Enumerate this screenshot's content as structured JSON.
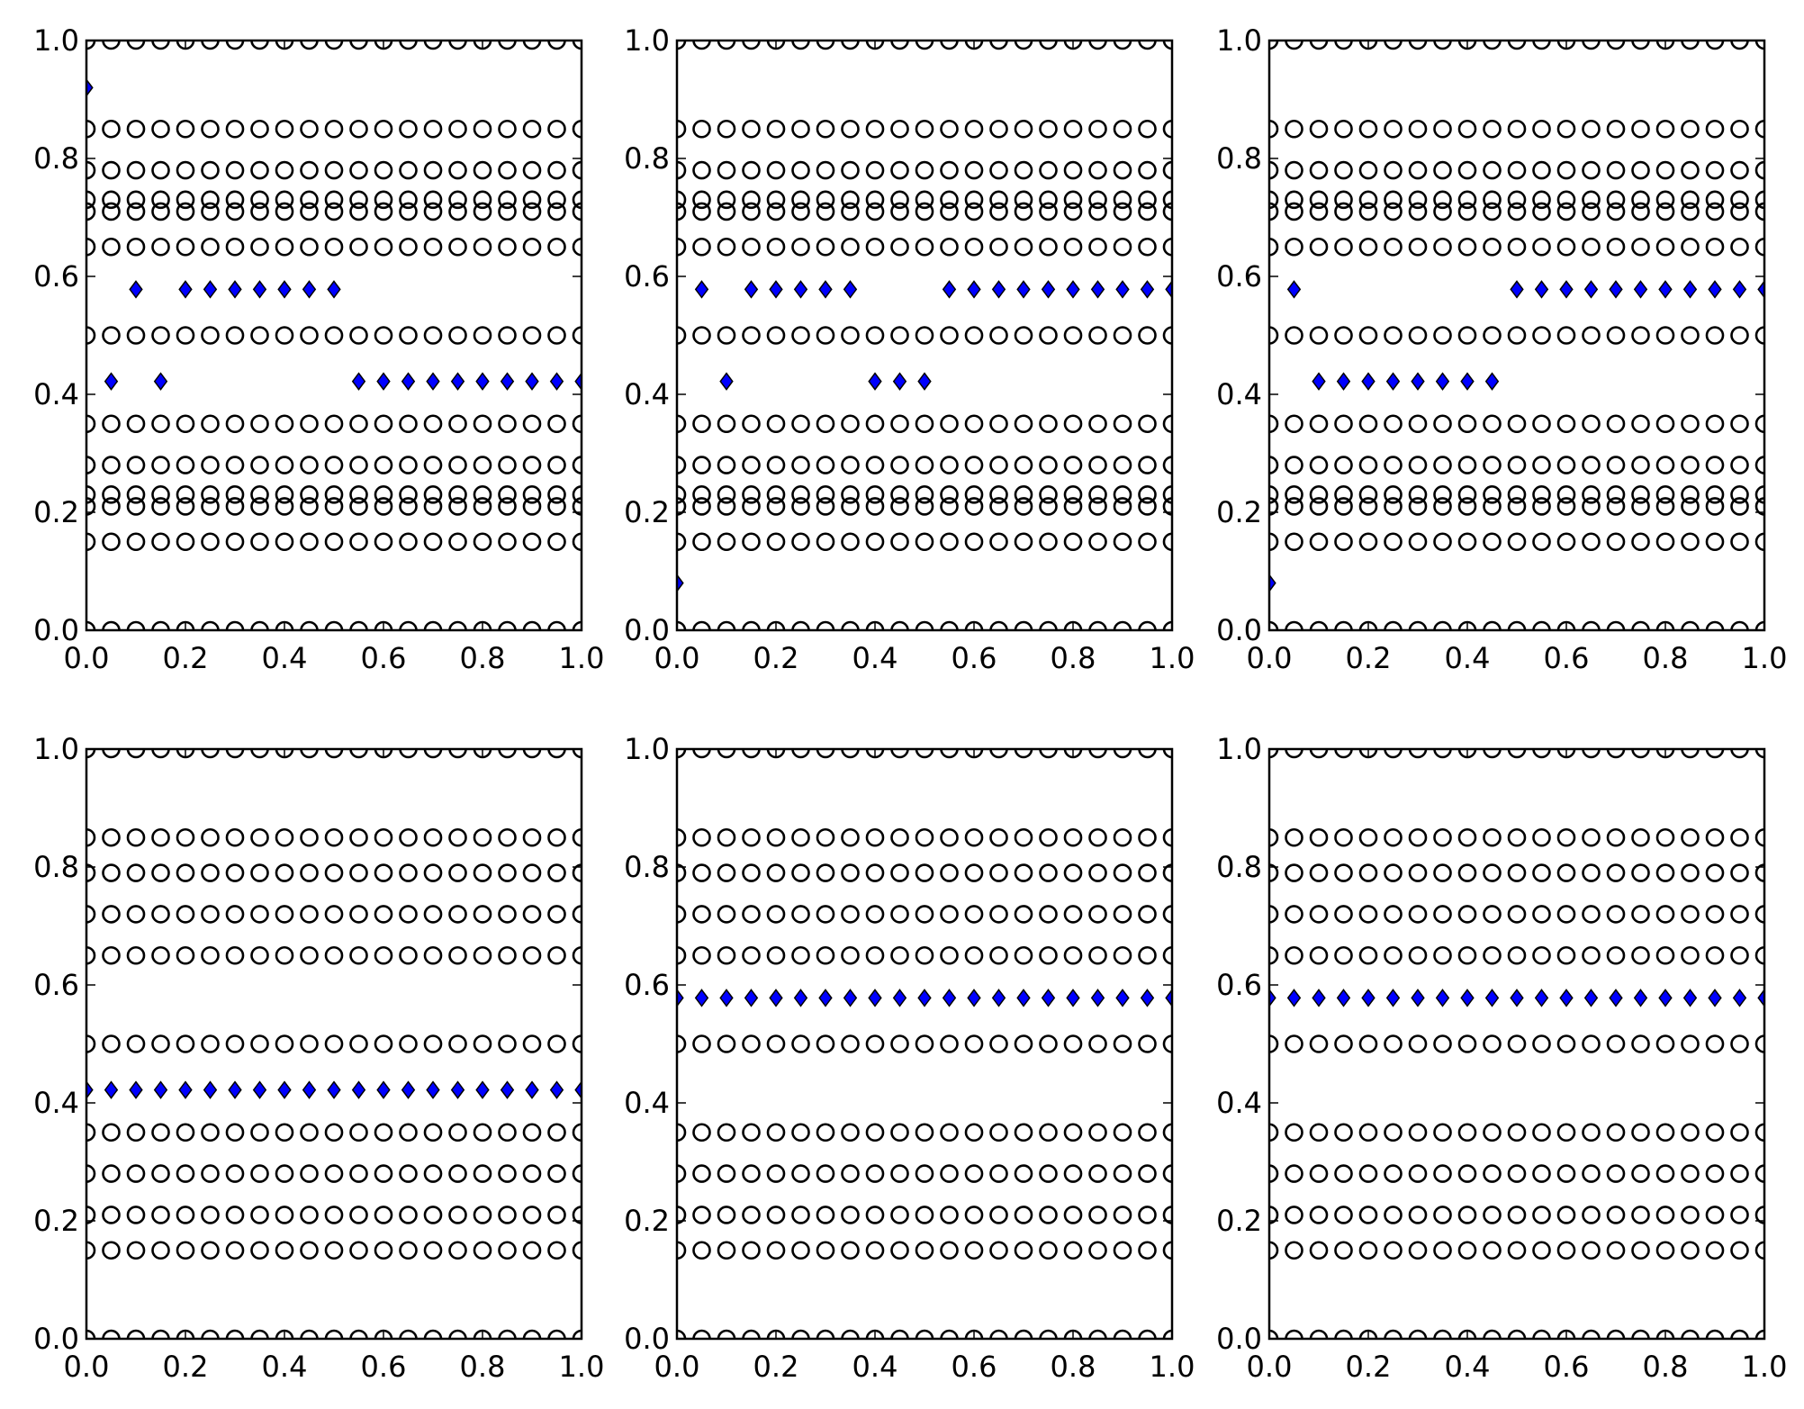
{
  "colors": {
    "marker_face": "#0000ff",
    "marker_edge": "#000000",
    "axes": "#000000",
    "background": "#ffffff"
  },
  "chart_data": [
    {
      "type": "scatter",
      "panel": "top-left",
      "xlim": [
        0,
        1
      ],
      "ylim": [
        0,
        1
      ],
      "x_ticks": [
        "0.0",
        "0.2",
        "0.4",
        "0.6",
        "0.8",
        "1.0"
      ],
      "y_ticks": [
        "0.0",
        "0.2",
        "0.4",
        "0.6",
        "0.8",
        "1.0"
      ],
      "grid": false,
      "circle_rows_y": [
        0.0,
        0.15,
        0.21,
        0.23,
        0.28,
        0.35,
        0.5,
        0.65,
        0.71,
        0.73,
        0.78,
        0.85,
        1.0
      ],
      "circle_x": [
        0.0,
        0.05,
        0.1,
        0.15,
        0.2,
        0.25,
        0.3,
        0.35,
        0.4,
        0.45,
        0.5,
        0.55,
        0.6,
        0.65,
        0.7,
        0.75,
        0.8,
        0.85,
        0.9,
        0.95,
        1.0
      ],
      "series": [
        {
          "marker": "diamond",
          "points": [
            [
              0.0,
              0.92
            ],
            [
              0.1,
              0.578
            ],
            [
              0.2,
              0.578
            ],
            [
              0.25,
              0.578
            ],
            [
              0.3,
              0.578
            ],
            [
              0.35,
              0.578
            ],
            [
              0.4,
              0.578
            ],
            [
              0.45,
              0.578
            ],
            [
              0.5,
              0.578
            ],
            [
              0.05,
              0.422
            ],
            [
              0.15,
              0.422
            ],
            [
              0.55,
              0.422
            ],
            [
              0.6,
              0.422
            ],
            [
              0.65,
              0.422
            ],
            [
              0.7,
              0.422
            ],
            [
              0.75,
              0.422
            ],
            [
              0.8,
              0.422
            ],
            [
              0.85,
              0.422
            ],
            [
              0.9,
              0.422
            ],
            [
              0.95,
              0.422
            ],
            [
              1.0,
              0.422
            ]
          ]
        }
      ]
    },
    {
      "type": "scatter",
      "panel": "top-middle",
      "xlim": [
        0,
        1
      ],
      "ylim": [
        0,
        1
      ],
      "x_ticks": [
        "0.0",
        "0.2",
        "0.4",
        "0.6",
        "0.8",
        "1.0"
      ],
      "y_ticks": [
        "0.0",
        "0.2",
        "0.4",
        "0.6",
        "0.8",
        "1.0"
      ],
      "grid": false,
      "circle_rows_y": [
        0.0,
        0.15,
        0.21,
        0.23,
        0.28,
        0.35,
        0.5,
        0.65,
        0.71,
        0.73,
        0.78,
        0.85,
        1.0
      ],
      "circle_x": [
        0.0,
        0.05,
        0.1,
        0.15,
        0.2,
        0.25,
        0.3,
        0.35,
        0.4,
        0.45,
        0.5,
        0.55,
        0.6,
        0.65,
        0.7,
        0.75,
        0.8,
        0.85,
        0.9,
        0.95,
        1.0
      ],
      "series": [
        {
          "marker": "diamond",
          "points": [
            [
              0.05,
              0.578
            ],
            [
              0.15,
              0.578
            ],
            [
              0.2,
              0.578
            ],
            [
              0.25,
              0.578
            ],
            [
              0.3,
              0.578
            ],
            [
              0.35,
              0.578
            ],
            [
              0.55,
              0.578
            ],
            [
              0.6,
              0.578
            ],
            [
              0.65,
              0.578
            ],
            [
              0.7,
              0.578
            ],
            [
              0.75,
              0.578
            ],
            [
              0.8,
              0.578
            ],
            [
              0.85,
              0.578
            ],
            [
              0.9,
              0.578
            ],
            [
              0.95,
              0.578
            ],
            [
              1.0,
              0.578
            ],
            [
              0.1,
              0.422
            ],
            [
              0.4,
              0.422
            ],
            [
              0.45,
              0.422
            ],
            [
              0.5,
              0.422
            ],
            [
              0.0,
              0.08
            ]
          ]
        }
      ]
    },
    {
      "type": "scatter",
      "panel": "top-right",
      "xlim": [
        0,
        1
      ],
      "ylim": [
        0,
        1
      ],
      "x_ticks": [
        "0.0",
        "0.2",
        "0.4",
        "0.6",
        "0.8",
        "1.0"
      ],
      "y_ticks": [
        "0.0",
        "0.2",
        "0.4",
        "0.6",
        "0.8",
        "1.0"
      ],
      "grid": false,
      "circle_rows_y": [
        0.0,
        0.15,
        0.21,
        0.23,
        0.28,
        0.35,
        0.5,
        0.65,
        0.71,
        0.73,
        0.78,
        0.85,
        1.0
      ],
      "circle_x": [
        0.0,
        0.05,
        0.1,
        0.15,
        0.2,
        0.25,
        0.3,
        0.35,
        0.4,
        0.45,
        0.5,
        0.55,
        0.6,
        0.65,
        0.7,
        0.75,
        0.8,
        0.85,
        0.9,
        0.95,
        1.0
      ],
      "series": [
        {
          "marker": "diamond",
          "points": [
            [
              0.05,
              0.578
            ],
            [
              0.5,
              0.578
            ],
            [
              0.55,
              0.578
            ],
            [
              0.6,
              0.578
            ],
            [
              0.65,
              0.578
            ],
            [
              0.7,
              0.578
            ],
            [
              0.75,
              0.578
            ],
            [
              0.8,
              0.578
            ],
            [
              0.85,
              0.578
            ],
            [
              0.9,
              0.578
            ],
            [
              0.95,
              0.578
            ],
            [
              1.0,
              0.578
            ],
            [
              0.1,
              0.422
            ],
            [
              0.15,
              0.422
            ],
            [
              0.2,
              0.422
            ],
            [
              0.25,
              0.422
            ],
            [
              0.3,
              0.422
            ],
            [
              0.35,
              0.422
            ],
            [
              0.4,
              0.422
            ],
            [
              0.45,
              0.422
            ],
            [
              0.0,
              0.08
            ]
          ]
        }
      ]
    },
    {
      "type": "scatter",
      "panel": "bottom-left",
      "xlim": [
        0,
        1
      ],
      "ylim": [
        0,
        1
      ],
      "x_ticks": [
        "0.0",
        "0.2",
        "0.4",
        "0.6",
        "0.8",
        "1.0"
      ],
      "y_ticks": [
        "0.0",
        "0.2",
        "0.4",
        "0.6",
        "0.8",
        "1.0"
      ],
      "grid": false,
      "circle_rows_y": [
        0.0,
        0.15,
        0.21,
        0.28,
        0.35,
        0.5,
        0.65,
        0.72,
        0.79,
        0.85,
        1.0
      ],
      "circle_x": [
        0.0,
        0.05,
        0.1,
        0.15,
        0.2,
        0.25,
        0.3,
        0.35,
        0.4,
        0.45,
        0.5,
        0.55,
        0.6,
        0.65,
        0.7,
        0.75,
        0.8,
        0.85,
        0.9,
        0.95,
        1.0
      ],
      "series": [
        {
          "marker": "diamond",
          "points": [
            [
              0.0,
              0.422
            ],
            [
              0.05,
              0.422
            ],
            [
              0.1,
              0.422
            ],
            [
              0.15,
              0.422
            ],
            [
              0.2,
              0.422
            ],
            [
              0.25,
              0.422
            ],
            [
              0.3,
              0.422
            ],
            [
              0.35,
              0.422
            ],
            [
              0.4,
              0.422
            ],
            [
              0.45,
              0.422
            ],
            [
              0.5,
              0.422
            ],
            [
              0.55,
              0.422
            ],
            [
              0.6,
              0.422
            ],
            [
              0.65,
              0.422
            ],
            [
              0.7,
              0.422
            ],
            [
              0.75,
              0.422
            ],
            [
              0.8,
              0.422
            ],
            [
              0.85,
              0.422
            ],
            [
              0.9,
              0.422
            ],
            [
              0.95,
              0.422
            ],
            [
              1.0,
              0.422
            ]
          ]
        }
      ]
    },
    {
      "type": "scatter",
      "panel": "bottom-middle",
      "xlim": [
        0,
        1
      ],
      "ylim": [
        0,
        1
      ],
      "x_ticks": [
        "0.0",
        "0.2",
        "0.4",
        "0.6",
        "0.8",
        "1.0"
      ],
      "y_ticks": [
        "0.0",
        "0.2",
        "0.4",
        "0.6",
        "0.8",
        "1.0"
      ],
      "grid": false,
      "circle_rows_y": [
        0.0,
        0.15,
        0.21,
        0.28,
        0.35,
        0.5,
        0.65,
        0.72,
        0.79,
        0.85,
        1.0
      ],
      "circle_x": [
        0.0,
        0.05,
        0.1,
        0.15,
        0.2,
        0.25,
        0.3,
        0.35,
        0.4,
        0.45,
        0.5,
        0.55,
        0.6,
        0.65,
        0.7,
        0.75,
        0.8,
        0.85,
        0.9,
        0.95,
        1.0
      ],
      "series": [
        {
          "marker": "diamond",
          "points": [
            [
              0.0,
              0.578
            ],
            [
              0.05,
              0.578
            ],
            [
              0.1,
              0.578
            ],
            [
              0.15,
              0.578
            ],
            [
              0.2,
              0.578
            ],
            [
              0.25,
              0.578
            ],
            [
              0.3,
              0.578
            ],
            [
              0.35,
              0.578
            ],
            [
              0.4,
              0.578
            ],
            [
              0.45,
              0.578
            ],
            [
              0.5,
              0.578
            ],
            [
              0.55,
              0.578
            ],
            [
              0.6,
              0.578
            ],
            [
              0.65,
              0.578
            ],
            [
              0.7,
              0.578
            ],
            [
              0.75,
              0.578
            ],
            [
              0.8,
              0.578
            ],
            [
              0.85,
              0.578
            ],
            [
              0.9,
              0.578
            ],
            [
              0.95,
              0.578
            ],
            [
              1.0,
              0.578
            ]
          ]
        }
      ]
    },
    {
      "type": "scatter",
      "panel": "bottom-right",
      "xlim": [
        0,
        1
      ],
      "ylim": [
        0,
        1
      ],
      "x_ticks": [
        "0.0",
        "0.2",
        "0.4",
        "0.6",
        "0.8",
        "1.0"
      ],
      "y_ticks": [
        "0.0",
        "0.2",
        "0.4",
        "0.6",
        "0.8",
        "1.0"
      ],
      "grid": false,
      "circle_rows_y": [
        0.0,
        0.15,
        0.21,
        0.28,
        0.35,
        0.5,
        0.65,
        0.72,
        0.79,
        0.85,
        1.0
      ],
      "circle_x": [
        0.0,
        0.05,
        0.1,
        0.15,
        0.2,
        0.25,
        0.3,
        0.35,
        0.4,
        0.45,
        0.5,
        0.55,
        0.6,
        0.65,
        0.7,
        0.75,
        0.8,
        0.85,
        0.9,
        0.95,
        1.0
      ],
      "series": [
        {
          "marker": "diamond",
          "points": [
            [
              0.0,
              0.578
            ],
            [
              0.05,
              0.578
            ],
            [
              0.1,
              0.578
            ],
            [
              0.15,
              0.578
            ],
            [
              0.2,
              0.578
            ],
            [
              0.25,
              0.578
            ],
            [
              0.3,
              0.578
            ],
            [
              0.35,
              0.578
            ],
            [
              0.4,
              0.578
            ],
            [
              0.45,
              0.578
            ],
            [
              0.5,
              0.578
            ],
            [
              0.55,
              0.578
            ],
            [
              0.6,
              0.578
            ],
            [
              0.65,
              0.578
            ],
            [
              0.7,
              0.578
            ],
            [
              0.75,
              0.578
            ],
            [
              0.8,
              0.578
            ],
            [
              0.85,
              0.578
            ],
            [
              0.9,
              0.578
            ],
            [
              0.95,
              0.578
            ],
            [
              1.0,
              0.578
            ]
          ]
        }
      ]
    }
  ]
}
